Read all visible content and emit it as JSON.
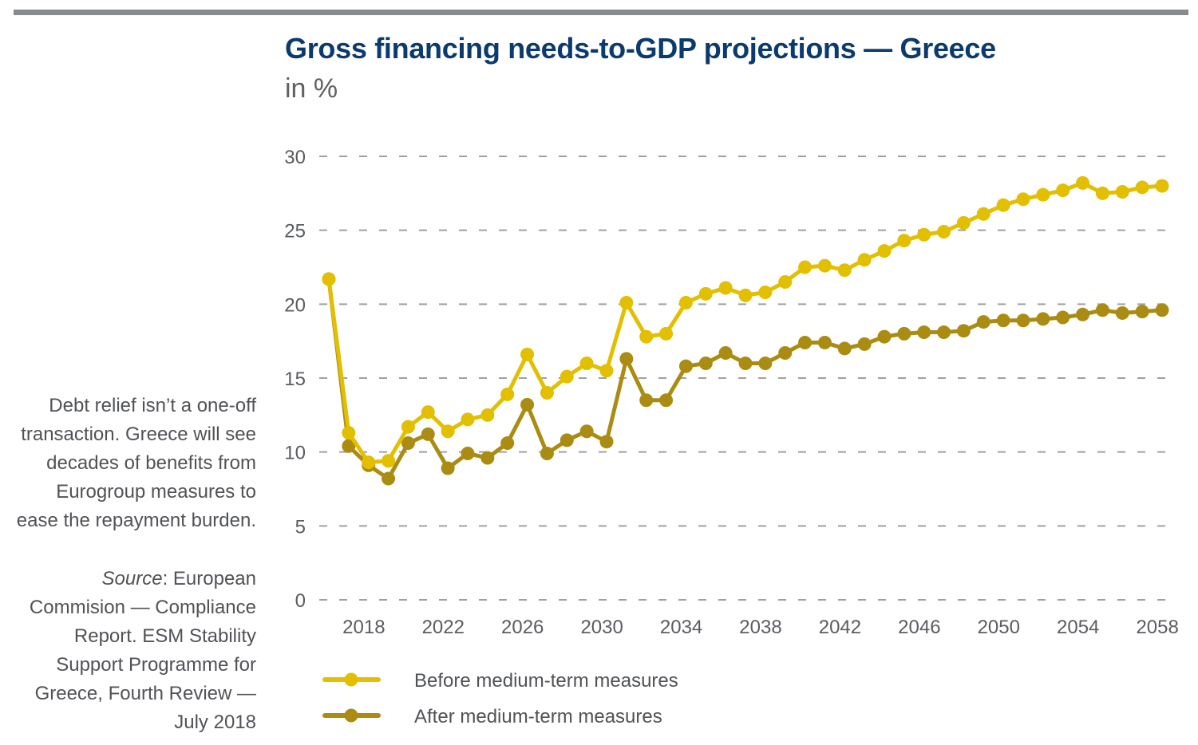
{
  "header": {
    "title": "Gross financing needs-to-GDP projections — Greece",
    "subtitle": "in %"
  },
  "sidebar": {
    "description": [
      "Debt relief isn’t a one-off",
      "transaction. Greece will see",
      "decades of benefits from",
      "Eurogroup measures to",
      "ease the repayment burden."
    ],
    "source_label": "Source",
    "source_lines": [
      ": European",
      "Commision — Compliance",
      "Report. ESM Stability",
      "Support Programme for",
      "Greece, Fourth Review —",
      "July 2018"
    ]
  },
  "colors": {
    "title": "#0b3a6e",
    "before": "#e2bf00",
    "after": "#ab8c12",
    "grid": "#a0a0a0",
    "topbar": "#858b8e"
  },
  "chart_data": {
    "type": "line",
    "title": "Gross financing needs-to-GDP projections — Greece",
    "subtitle": "in %",
    "xlabel": "",
    "ylabel": "in %",
    "ylim": [
      0,
      30
    ],
    "xlim": [
      2017,
      2059
    ],
    "yticks": [
      0,
      5,
      10,
      15,
      20,
      25,
      30
    ],
    "xticks": [
      2018,
      2022,
      2026,
      2030,
      2034,
      2038,
      2042,
      2046,
      2050,
      2054,
      2058
    ],
    "grid": "horizontal dashed",
    "legend_position": "bottom-left",
    "x": [
      2017,
      2018,
      2019,
      2020,
      2021,
      2022,
      2023,
      2024,
      2025,
      2026,
      2027,
      2028,
      2029,
      2030,
      2031,
      2032,
      2033,
      2034,
      2035,
      2036,
      2037,
      2038,
      2039,
      2040,
      2041,
      2042,
      2043,
      2044,
      2045,
      2046,
      2047,
      2048,
      2049,
      2050,
      2051,
      2052,
      2053,
      2054,
      2055,
      2056,
      2057,
      2058,
      2059
    ],
    "series": [
      {
        "name": "Before medium-term measures",
        "color": "#e2bf00",
        "values": [
          21.7,
          11.3,
          9.3,
          9.4,
          11.7,
          12.7,
          11.4,
          12.2,
          12.5,
          13.9,
          16.6,
          14.0,
          15.1,
          16.0,
          15.5,
          20.1,
          17.8,
          18.0,
          20.1,
          20.7,
          21.1,
          20.6,
          20.8,
          21.5,
          22.5,
          22.6,
          22.3,
          23.0,
          23.6,
          24.3,
          24.7,
          24.9,
          25.5,
          26.1,
          26.7,
          27.1,
          27.4,
          27.7,
          28.2,
          27.5,
          27.6,
          27.9,
          28.0
        ]
      },
      {
        "name": "After medium-term measures",
        "color": "#ab8c12",
        "values": [
          21.7,
          10.4,
          9.1,
          8.2,
          10.6,
          11.2,
          8.9,
          9.9,
          9.6,
          10.6,
          13.2,
          9.9,
          10.8,
          11.4,
          10.7,
          16.3,
          13.5,
          13.5,
          15.8,
          16.0,
          16.7,
          16.0,
          16.0,
          16.7,
          17.4,
          17.4,
          17.0,
          17.3,
          17.8,
          18.0,
          18.1,
          18.1,
          18.2,
          18.8,
          18.9,
          18.9,
          19.0,
          19.1,
          19.3,
          19.6,
          19.4,
          19.5,
          19.6
        ]
      }
    ]
  }
}
